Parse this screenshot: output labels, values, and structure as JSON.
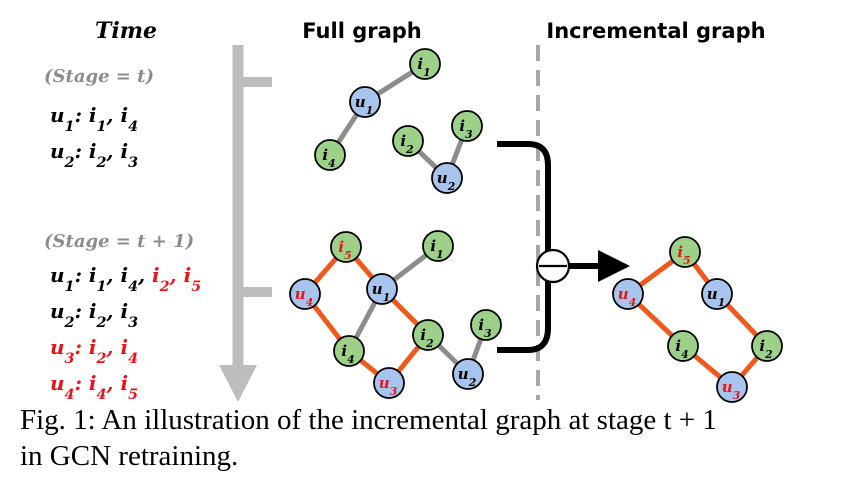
{
  "headers": {
    "time": "Time",
    "full_graph": "Full graph",
    "incremental_graph": "Incremental graph"
  },
  "stages": {
    "t": "(Stage = t)",
    "t1": "(Stage = t + 1)"
  },
  "lists": {
    "t": [
      {
        "user": "u1",
        "items": [
          {
            "t": "i1",
            "new": false
          },
          {
            "t": "i4",
            "new": false
          }
        ]
      },
      {
        "user": "u2",
        "items": [
          {
            "t": "i2",
            "new": false
          },
          {
            "t": "i3",
            "new": false
          }
        ]
      }
    ],
    "t1": [
      {
        "user": "u1",
        "new": false,
        "items": [
          {
            "t": "i1",
            "new": false
          },
          {
            "t": "i4",
            "new": false
          },
          {
            "t": "i2",
            "new": true
          },
          {
            "t": "i5",
            "new": true
          }
        ]
      },
      {
        "user": "u2",
        "new": false,
        "items": [
          {
            "t": "i2",
            "new": false
          },
          {
            "t": "i3",
            "new": false
          }
        ]
      },
      {
        "user": "u3",
        "new": true,
        "items": [
          {
            "t": "i2",
            "new": true
          },
          {
            "t": "i4",
            "new": true
          }
        ]
      },
      {
        "user": "u4",
        "new": true,
        "items": [
          {
            "t": "i4",
            "new": true
          },
          {
            "t": "i5",
            "new": true
          }
        ]
      }
    ]
  },
  "graphs": {
    "top": {
      "nodes": [
        {
          "id": "i1",
          "kind": "item",
          "new": false
        },
        {
          "id": "u1",
          "kind": "user",
          "new": false
        },
        {
          "id": "i4",
          "kind": "item",
          "new": false
        },
        {
          "id": "i2",
          "kind": "item",
          "new": false
        },
        {
          "id": "i3",
          "kind": "item",
          "new": false
        },
        {
          "id": "u2",
          "kind": "user",
          "new": false
        }
      ],
      "edges": [
        {
          "a": "u1",
          "b": "i1",
          "new": false
        },
        {
          "a": "u1",
          "b": "i4",
          "new": false
        },
        {
          "a": "u2",
          "b": "i2",
          "new": false
        },
        {
          "a": "u2",
          "b": "i3",
          "new": false
        }
      ]
    },
    "bottom": {
      "nodes": [
        {
          "id": "i5",
          "kind": "item",
          "new": true
        },
        {
          "id": "i1",
          "kind": "item",
          "new": false
        },
        {
          "id": "u4",
          "kind": "user",
          "new": true
        },
        {
          "id": "u1",
          "kind": "user",
          "new": false
        },
        {
          "id": "i2",
          "kind": "item",
          "new": false
        },
        {
          "id": "i3",
          "kind": "item",
          "new": false
        },
        {
          "id": "i4",
          "kind": "item",
          "new": false
        },
        {
          "id": "u3",
          "kind": "user",
          "new": true
        },
        {
          "id": "u2",
          "kind": "user",
          "new": false
        }
      ],
      "edges": [
        {
          "a": "u1",
          "b": "i1",
          "new": false
        },
        {
          "a": "u1",
          "b": "i4",
          "new": false
        },
        {
          "a": "u2",
          "b": "i2",
          "new": false
        },
        {
          "a": "u2",
          "b": "i3",
          "new": false
        },
        {
          "a": "u4",
          "b": "i5",
          "new": true
        },
        {
          "a": "u4",
          "b": "i4",
          "new": true
        },
        {
          "a": "u1",
          "b": "i5",
          "new": true
        },
        {
          "a": "u1",
          "b": "i2",
          "new": true
        },
        {
          "a": "u3",
          "b": "i2",
          "new": true
        },
        {
          "a": "u3",
          "b": "i4",
          "new": true
        }
      ]
    },
    "incremental": {
      "nodes": [
        {
          "id": "i5",
          "kind": "item",
          "new": true
        },
        {
          "id": "u4",
          "kind": "user",
          "new": true
        },
        {
          "id": "u1",
          "kind": "user",
          "new": false
        },
        {
          "id": "i4",
          "kind": "item",
          "new": false
        },
        {
          "id": "i2",
          "kind": "item",
          "new": false
        },
        {
          "id": "u3",
          "kind": "user",
          "new": true
        }
      ],
      "edges": [
        {
          "a": "u4",
          "b": "i5",
          "new": true
        },
        {
          "a": "u4",
          "b": "i4",
          "new": true
        },
        {
          "a": "u1",
          "b": "i5",
          "new": true
        },
        {
          "a": "u1",
          "b": "i2",
          "new": true
        },
        {
          "a": "u3",
          "b": "i2",
          "new": true
        },
        {
          "a": "u3",
          "b": "i4",
          "new": true
        }
      ]
    }
  },
  "colors": {
    "item_node": "#9dd18a",
    "user_node": "#a7c4ec",
    "old_edge": "#8c8c8c",
    "new_edge": "#ef5a1c",
    "new_label": "#e8141b",
    "time_arrow": "#bdbdbd",
    "dashed_line": "#a6a6a6"
  },
  "caption": {
    "line1": "Fig. 1: An illustration of the incremental graph at stage t + 1",
    "line2": "in GCN retraining."
  }
}
